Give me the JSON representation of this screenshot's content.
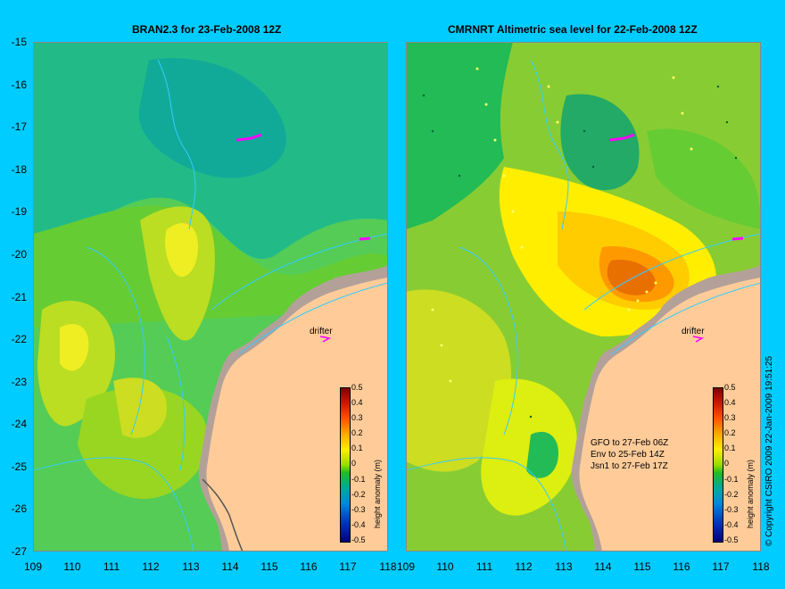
{
  "panels": [
    {
      "title": "BRAN2.3 for 23-Feb-2008 12Z"
    },
    {
      "title": "CMRNRT Altimetric sea level  for 22-Feb-2008 12Z"
    }
  ],
  "axes": {
    "lon_min": 109,
    "lon_max": 118,
    "lat_min": -27,
    "lat_max": -15,
    "x_ticks": [
      "109",
      "110",
      "111",
      "112",
      "113",
      "114",
      "115",
      "116",
      "117",
      "118"
    ],
    "y_ticks": [
      "-15",
      "-16",
      "-17",
      "-18",
      "-19",
      "-20",
      "-21",
      "-22",
      "-23",
      "-24",
      "-25",
      "-26",
      "-27"
    ]
  },
  "colorbar": {
    "label": "height anomaly (m)",
    "ticks": [
      "0.5",
      "0.4",
      "0.3",
      "0.2",
      "0.1",
      "0",
      "-0.1",
      "-0.2",
      "-0.3",
      "-0.4",
      "-0.5"
    ]
  },
  "drifter_label": "drifter",
  "observations": [
    "GFO to 27-Feb 06Z",
    "Env to 25-Feb 14Z",
    "Jsn1 to 27-Feb 17Z"
  ],
  "copyright": "© Copyright CSIRO 2009   22-Jan-2009 19:51:25",
  "colors": {
    "background": "#00ccff",
    "land": "#ffcc99",
    "shelf": "#b3a199",
    "contour": "#33ccff",
    "drifter": "#ff00ff",
    "anomaly_high": "#e87000",
    "anomaly_mid": "#ffee00",
    "anomaly_low": "#22bb88"
  }
}
